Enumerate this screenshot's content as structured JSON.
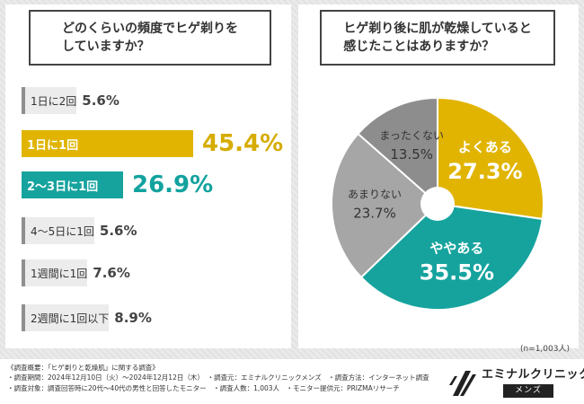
{
  "chart_data": [
    {
      "type": "bar",
      "orientation": "horizontal",
      "title": "どのくらいの頻度でヒゲ剃りを\nしていますか？",
      "categories": [
        "1日に2回",
        "1日に1回",
        "2〜3日に1回",
        "4〜5日に1回",
        "1週間に1回",
        "2週間に1回以下"
      ],
      "values": [
        5.6,
        45.4,
        26.9,
        5.6,
        7.6,
        8.9
      ],
      "value_labels": [
        "5.6%",
        "45.4%",
        "26.9%",
        "5.6%",
        "7.6%",
        "8.9%"
      ],
      "highlight": [
        "none",
        "yellow",
        "teal",
        "none",
        "none",
        "none"
      ],
      "xlim": [
        0,
        50
      ]
    },
    {
      "type": "pie",
      "title": "ヒゲ剃り後に肌が乾燥していると\n感じたことはありますか？",
      "categories": [
        "よくある",
        "ややある",
        "あまりない",
        "まったくない"
      ],
      "values": [
        27.3,
        35.5,
        23.7,
        13.5
      ],
      "value_labels": [
        "27.3%",
        "35.5%",
        "23.7%",
        "13.5%"
      ],
      "colors": [
        "#e0b400",
        "#16a39e",
        "#a6a6a6",
        "#8d8d8d"
      ],
      "label_colors": [
        "#ffffff",
        "#ffffff",
        "#333333",
        "#333333"
      ],
      "note": "(n=1,003人)"
    }
  ],
  "colors": {
    "yellow": "#e0b400",
    "teal": "#16a39e",
    "gray_bar": "#ececec",
    "pct_yellow": "#d6ac00",
    "pct_teal": "#12a29e"
  },
  "footer": [
    "《調査概要：「ヒゲ剃りと乾燥肌」に関する調査》",
    "・調査期間：2024年12月10日（火）〜2024年12月12日（木）　・調査元：エミナルクリニックメンズ　・調査方法：インターネット調査",
    "・調査対象：調査回答時に20代〜40代の男性と回答したモニター　・調査人数：1,003人　・モニター提供元：PRIZMAリサーチ"
  ],
  "logo": {
    "name": "エミナルクリニック",
    "sub": "メンズ",
    "icon": "eminal-logo-icon"
  }
}
